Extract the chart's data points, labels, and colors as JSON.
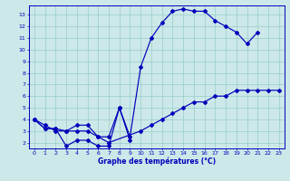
{
  "xlabel": "Graphe des températures (°C)",
  "bg_color": "#cce8e8",
  "line_color": "#0000bb",
  "grid_color": "#99cccc",
  "xlim": [
    -0.5,
    23.5
  ],
  "ylim": [
    1.5,
    13.8
  ],
  "xticks": [
    0,
    1,
    2,
    3,
    4,
    5,
    6,
    7,
    8,
    9,
    10,
    11,
    12,
    13,
    14,
    15,
    16,
    17,
    18,
    19,
    20,
    21,
    22,
    23
  ],
  "yticks": [
    2,
    3,
    4,
    5,
    6,
    7,
    8,
    9,
    10,
    11,
    12,
    13
  ],
  "line2_x": [
    0,
    1,
    2,
    3,
    4,
    5,
    6,
    7,
    8,
    9,
    10,
    11,
    12,
    13,
    14,
    15,
    16,
    17,
    18,
    19,
    20,
    21
  ],
  "line2_y": [
    4,
    3.2,
    3.2,
    3.0,
    3.5,
    3.5,
    2.5,
    2.5,
    5.0,
    2.5,
    8.5,
    11.0,
    12.3,
    13.3,
    13.5,
    13.3,
    13.3,
    12.5,
    12.0,
    11.5,
    10.5,
    11.5
  ],
  "line1_x": [
    0,
    1,
    2,
    3,
    4,
    5,
    6,
    7,
    8,
    9
  ],
  "line1_y": [
    4,
    3.2,
    3.2,
    1.7,
    2.2,
    2.2,
    1.7,
    1.7,
    5.0,
    2.2
  ],
  "line3_x": [
    0,
    1,
    2,
    3,
    4,
    5,
    6,
    7,
    10,
    11,
    12,
    13,
    14,
    15,
    16,
    17,
    18,
    19,
    20,
    21,
    22,
    23
  ],
  "line3_y": [
    4,
    3.5,
    3.0,
    3.0,
    3.0,
    3.0,
    2.5,
    2.0,
    3.0,
    3.5,
    4.0,
    4.5,
    5.0,
    5.5,
    5.5,
    6.0,
    6.0,
    6.5,
    6.5,
    6.5,
    6.5,
    6.5
  ]
}
